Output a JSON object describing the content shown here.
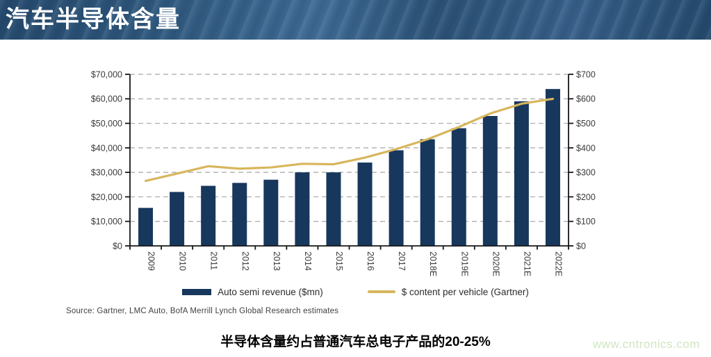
{
  "header": {
    "title": "汽车半导体含量",
    "background_color": "#2f587d",
    "text_color": "#ffffff"
  },
  "chart_data": {
    "type": "bar",
    "subtype": "combo-bar-line",
    "categories": [
      "2009",
      "2010",
      "2011",
      "2012",
      "2013",
      "2014",
      "2015",
      "2016",
      "2017",
      "2018E",
      "2019E",
      "2020E",
      "2021E",
      "2022E"
    ],
    "series": [
      {
        "name": "Auto semi revenue ($mn)",
        "type": "bar",
        "axis": "left",
        "color": "#17375d",
        "values": [
          15500,
          22000,
          24500,
          25700,
          27000,
          30000,
          30000,
          34000,
          39000,
          43500,
          48000,
          53000,
          59000,
          64000
        ]
      },
      {
        "name": "$ content per vehicle (Gartner)",
        "type": "line",
        "axis": "right",
        "color": "#d7b65c",
        "values": [
          265,
          295,
          325,
          315,
          320,
          335,
          333,
          360,
          395,
          435,
          485,
          540,
          580,
          600
        ]
      }
    ],
    "left_axis": {
      "min": 0,
      "max": 70000,
      "tick_labels": [
        "$0",
        "$10,000",
        "$20,000",
        "$30,000",
        "$40,000",
        "$50,000",
        "$60,000",
        "$70,000"
      ]
    },
    "right_axis": {
      "min": 0,
      "max": 700,
      "tick_labels": [
        "$0",
        "$100",
        "$200",
        "$300",
        "$400",
        "$500",
        "$600",
        "$700"
      ]
    },
    "grid": {
      "horizontal": "dashed",
      "color": "#a6a6a6"
    },
    "axis_text_color": "#3a3a3a",
    "legend_position": "bottom",
    "x_label_rotation": 90
  },
  "legend": {
    "items": [
      {
        "label": "Auto semi revenue ($mn)",
        "swatch": "bar",
        "color": "#17375d"
      },
      {
        "label": "$ content per vehicle (Gartner)",
        "swatch": "line",
        "color": "#d7b65c"
      }
    ]
  },
  "source": {
    "text": "Source:  Gartner, LMC Auto, BofA Merrill Lynch Global Research estimates"
  },
  "caption": {
    "text": "半导体含量约占普通汽车总电子产品的20-25%"
  },
  "watermark": {
    "text": "www.cntronics.com",
    "color": "#cfe6c0"
  }
}
